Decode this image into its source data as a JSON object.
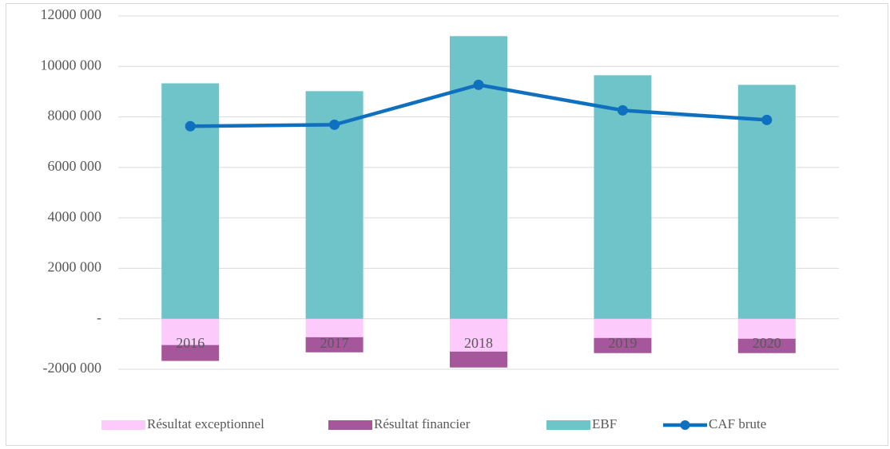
{
  "chart_data": {
    "type": "bar",
    "categories": [
      "2016",
      "2017",
      "2018",
      "2019",
      "2020"
    ],
    "series": [
      {
        "name": "Résultat exceptionnel",
        "type": "bar",
        "color": "#fccbfc",
        "values": [
          -1040000,
          -730000,
          -1300000,
          -760000,
          -790000
        ]
      },
      {
        "name": "Résultat financier",
        "type": "bar",
        "color": "#a6579c",
        "values": [
          -630000,
          -600000,
          -630000,
          -600000,
          -570000
        ]
      },
      {
        "name": "EBF",
        "type": "bar",
        "color": "#6fc4c9",
        "values": [
          9330000,
          9020000,
          11200000,
          9650000,
          9270000
        ]
      },
      {
        "name": "CAF brute",
        "type": "line",
        "color": "#1070c0",
        "values": [
          7630000,
          7690000,
          9270000,
          8260000,
          7880000
        ]
      }
    ],
    "ylim": [
      -2000000,
      12000000
    ],
    "yticks": [
      {
        "value": -2000000,
        "label": "-2000 000"
      },
      {
        "value": 0,
        "label": "-"
      },
      {
        "value": 2000000,
        "label": "2000 000"
      },
      {
        "value": 4000000,
        "label": "4000 000"
      },
      {
        "value": 6000000,
        "label": "6000 000"
      },
      {
        "value": 8000000,
        "label": "8000 000"
      },
      {
        "value": 10000000,
        "label": "10000 000"
      },
      {
        "value": 12000000,
        "label": "12000 000"
      }
    ],
    "grid": true,
    "legend": "bottom"
  }
}
